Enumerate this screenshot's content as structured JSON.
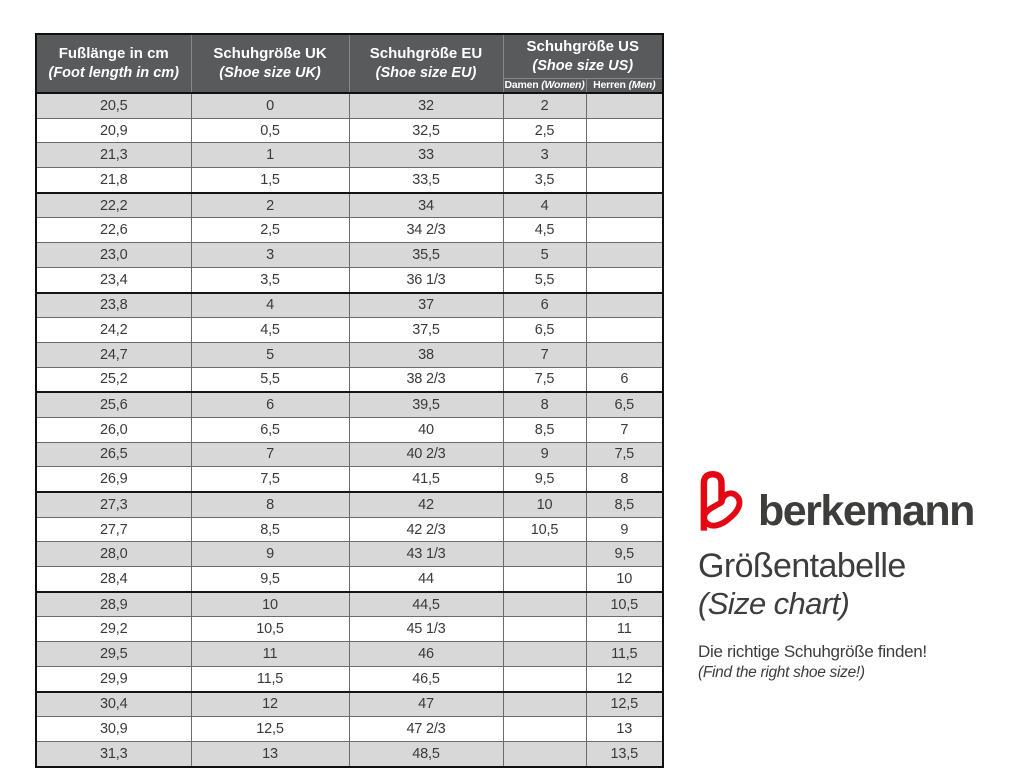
{
  "table": {
    "headers": {
      "foot": {
        "line1": "Fußlänge in cm",
        "line2": "(Foot length in cm)"
      },
      "uk": {
        "line1": "Schuhgröße UK",
        "line2": "(Shoe size UK)"
      },
      "eu": {
        "line1": "Schuhgröße EU",
        "line2": "(Shoe size EU)"
      },
      "us": {
        "line1": "Schuhgröße US",
        "line2": "(Shoe size US)",
        "women": "Damen",
        "women_en": "(Women)",
        "men": "Herren",
        "men_en": "(Men)"
      }
    },
    "rows": [
      [
        "20,5",
        "0",
        "32",
        "2",
        ""
      ],
      [
        "20,9",
        "0,5",
        "32,5",
        "2,5",
        ""
      ],
      [
        "21,3",
        "1",
        "33",
        "3",
        ""
      ],
      [
        "21,8",
        "1,5",
        "33,5",
        "3,5",
        ""
      ],
      [
        "22,2",
        "2",
        "34",
        "4",
        ""
      ],
      [
        "22,6",
        "2,5",
        "34 2/3",
        "4,5",
        ""
      ],
      [
        "23,0",
        "3",
        "35,5",
        "5",
        ""
      ],
      [
        "23,4",
        "3,5",
        "36 1/3",
        "5,5",
        ""
      ],
      [
        "23,8",
        "4",
        "37",
        "6",
        ""
      ],
      [
        "24,2",
        "4,5",
        "37,5",
        "6,5",
        ""
      ],
      [
        "24,7",
        "5",
        "38",
        "7",
        ""
      ],
      [
        "25,2",
        "5,5",
        "38 2/3",
        "7,5",
        "6"
      ],
      [
        "25,6",
        "6",
        "39,5",
        "8",
        "6,5"
      ],
      [
        "26,0",
        "6,5",
        "40",
        "8,5",
        "7"
      ],
      [
        "26,5",
        "7",
        "40 2/3",
        "9",
        "7,5"
      ],
      [
        "26,9",
        "7,5",
        "41,5",
        "9,5",
        "8"
      ],
      [
        "27,3",
        "8",
        "42",
        "10",
        "8,5"
      ],
      [
        "27,7",
        "8,5",
        "42 2/3",
        "10,5",
        "9"
      ],
      [
        "28,0",
        "9",
        "43 1/3",
        "",
        "9,5"
      ],
      [
        "28,4",
        "9,5",
        "44",
        "",
        "10"
      ],
      [
        "28,9",
        "10",
        "44,5",
        "",
        "10,5"
      ],
      [
        "29,2",
        "10,5",
        "45 1/3",
        "",
        "11"
      ],
      [
        "29,5",
        "11",
        "46",
        "",
        "11,5"
      ],
      [
        "29,9",
        "11,5",
        "46,5",
        "",
        "12"
      ],
      [
        "30,4",
        "12",
        "47",
        "",
        "12,5"
      ],
      [
        "30,9",
        "12,5",
        "47 2/3",
        "",
        "13"
      ],
      [
        "31,3",
        "13",
        "48,5",
        "",
        "13,5"
      ]
    ],
    "group_separator_every": 4,
    "colors": {
      "header_bg": "#595a5c",
      "header_text": "#ffffff",
      "row_stripe": "#d8d8d8",
      "row_white": "#ffffff",
      "grid_line": "#6b6b6b",
      "group_line": "#141414",
      "outer_border": "#101010",
      "text": "#3a3a3a"
    }
  },
  "brand": {
    "name": "berkemann",
    "logo_color": "#e30613",
    "title": "Größentabelle",
    "subtitle": "(Size chart)",
    "tagline_de": "Die richtige Schuhgröße finden!",
    "tagline_en": "(Find the right shoe size!)"
  }
}
